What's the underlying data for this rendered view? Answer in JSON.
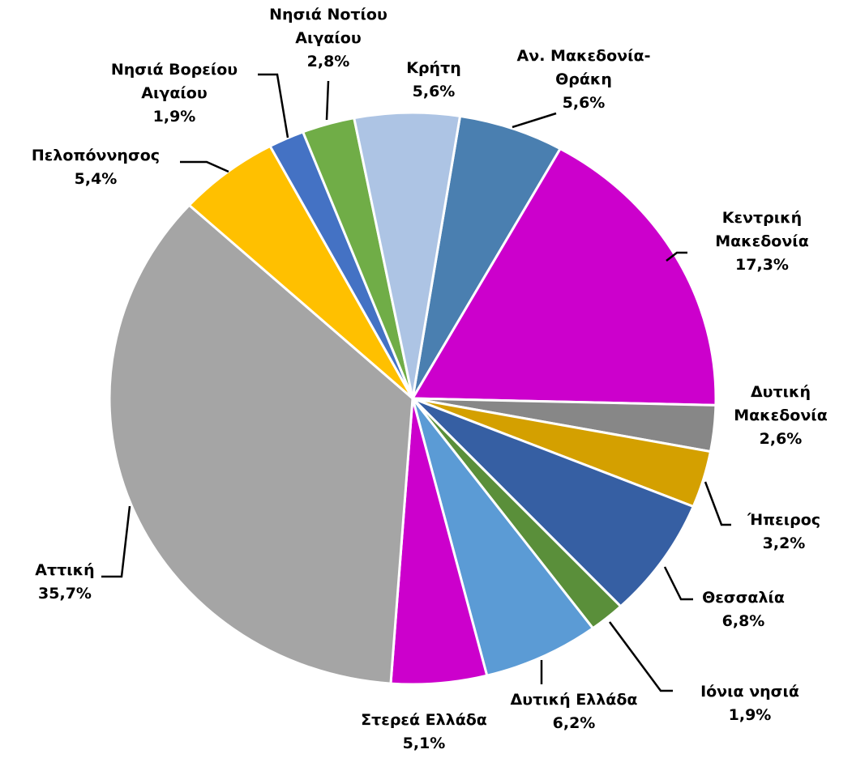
{
  "chart_data": {
    "type": "pie",
    "categories": [
      "Αν. Μακεδονία-Θράκη",
      "Κεντρική Μακεδονία",
      "Δυτική Μακεδονία",
      "Ήπειρος",
      "Θεσσαλία",
      "Ιόνια νησιά",
      "Δυτική Ελλάδα",
      "Στερεά Ελλάδα",
      "Αττική",
      "Πελοπόννησος",
      "Νησιά Βορείου Αιγαίου",
      "Νησιά Νοτίου Αιγαίου",
      "Κρήτη"
    ],
    "values": [
      5.6,
      17.3,
      2.6,
      3.2,
      6.8,
      1.9,
      6.2,
      5.1,
      35.7,
      5.4,
      1.9,
      2.8,
      5.6
    ],
    "value_labels": [
      "5,6%",
      "17,3%",
      "2,6%",
      "3,2%",
      "6,8%",
      "1,9%",
      "6,2%",
      "5,1%",
      "35,7%",
      "5,4%",
      "1,9%",
      "2,8%",
      "5,6%"
    ],
    "colors": [
      "#4a7fb0",
      "#cc00cc",
      "#878787",
      "#d4a000",
      "#365fa3",
      "#5a8f3a",
      "#5b9bd5",
      "#cc00cc",
      "#a5a5a5",
      "#ffc000",
      "#4472c4",
      "#70ad47",
      "#adc4e4"
    ]
  }
}
